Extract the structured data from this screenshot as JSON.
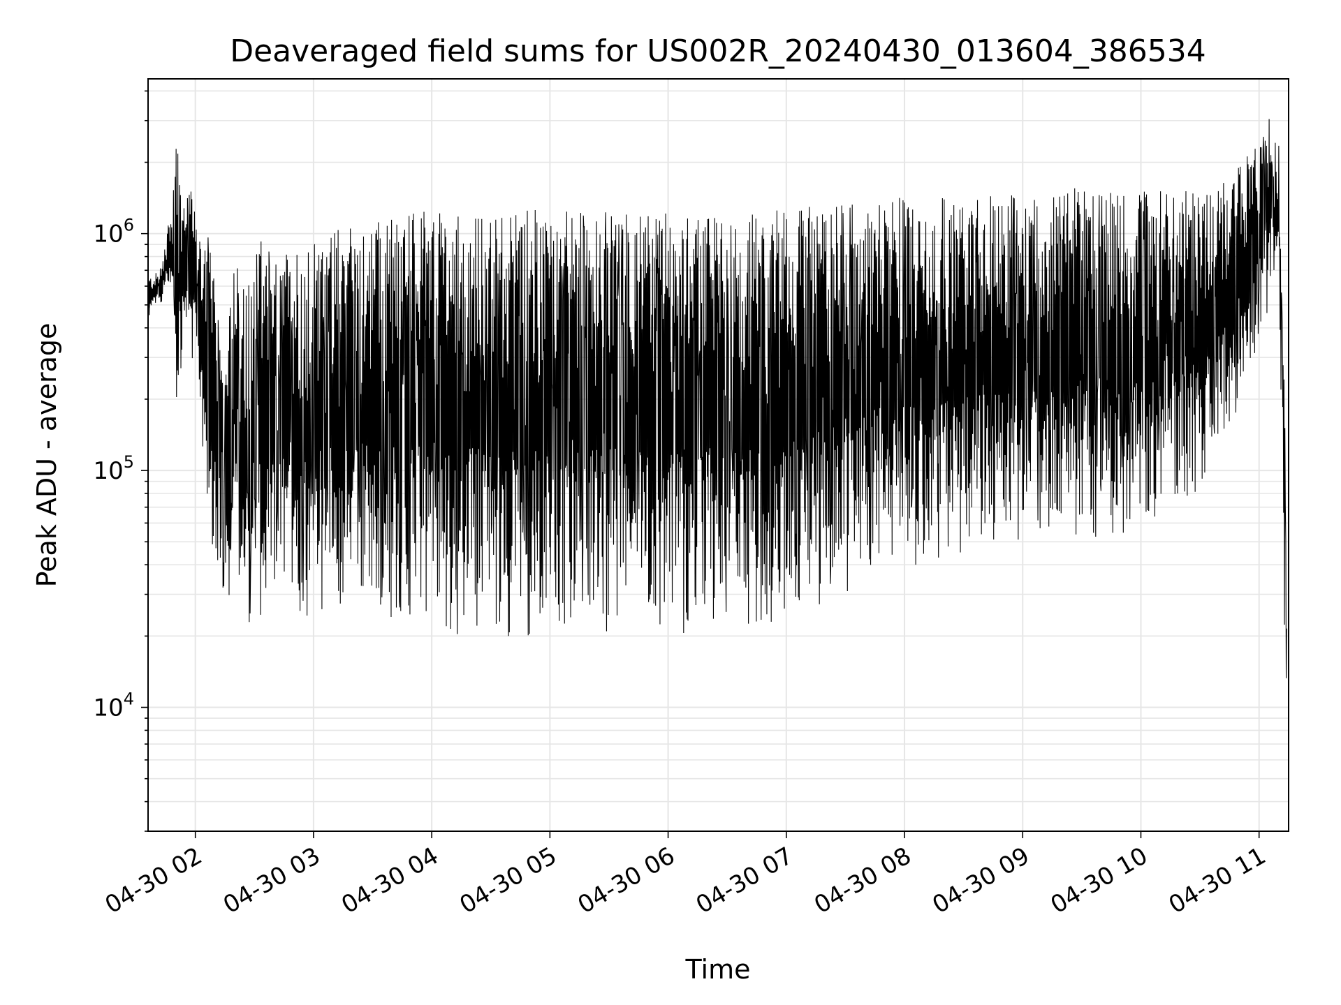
{
  "chart_data": {
    "type": "line",
    "title": "Deaveraged field sums for US002R_20240430_013604_386534",
    "xlabel": "Time",
    "ylabel": "Peak ADU - average",
    "yscale": "log",
    "ylim": [
      3000,
      4500000
    ],
    "xlim": [
      "2024-04-30 01:36",
      "2024-04-30 11:15"
    ],
    "grid": true,
    "line_color": "#000000",
    "x_tick_values": [
      "2024-04-30 02:00",
      "2024-04-30 03:00",
      "2024-04-30 04:00",
      "2024-04-30 05:00",
      "2024-04-30 06:00",
      "2024-04-30 07:00",
      "2024-04-30 08:00",
      "2024-04-30 09:00",
      "2024-04-30 10:00",
      "2024-04-30 11:00"
    ],
    "x_tick_labels": [
      "04-30 02",
      "04-30 03",
      "04-30 04",
      "04-30 05",
      "04-30 06",
      "04-30 07",
      "04-30 08",
      "04-30 09",
      "04-30 10",
      "04-30 11"
    ],
    "y_ticks": [
      {
        "value": 10000,
        "base": "10",
        "exp": "4"
      },
      {
        "value": 100000,
        "base": "10",
        "exp": "5"
      },
      {
        "value": 1000000,
        "base": "10",
        "exp": "6"
      }
    ],
    "series": [
      {
        "x": [
          "2024-04-30 01:36",
          "2024-04-30 01:42",
          "2024-04-30 01:48",
          "2024-04-30 01:51",
          "2024-04-30 01:54",
          "2024-04-30 01:57",
          "2024-04-30 02:00",
          "2024-04-30 02:03",
          "2024-04-30 02:06",
          "2024-04-30 02:09",
          "2024-04-30 02:12",
          "2024-04-30 02:15",
          "2024-04-30 02:20",
          "2024-04-30 02:25",
          "2024-04-30 02:30",
          "2024-04-30 02:40",
          "2024-04-30 02:50",
          "2024-04-30 03:00",
          "2024-04-30 03:15",
          "2024-04-30 03:30",
          "2024-04-30 03:45",
          "2024-04-30 04:00",
          "2024-04-30 04:15",
          "2024-04-30 04:30",
          "2024-04-30 04:45",
          "2024-04-30 05:00",
          "2024-04-30 05:15",
          "2024-04-30 05:30",
          "2024-04-30 05:45",
          "2024-04-30 06:00",
          "2024-04-30 06:15",
          "2024-04-30 06:30",
          "2024-04-30 06:45",
          "2024-04-30 07:00",
          "2024-04-30 07:15",
          "2024-04-30 07:30",
          "2024-04-30 07:45",
          "2024-04-30 08:00",
          "2024-04-30 08:15",
          "2024-04-30 08:30",
          "2024-04-30 08:45",
          "2024-04-30 09:00",
          "2024-04-30 09:15",
          "2024-04-30 09:30",
          "2024-04-30 09:45",
          "2024-04-30 10:00",
          "2024-04-30 10:15",
          "2024-04-30 10:30",
          "2024-04-30 10:45",
          "2024-04-30 11:00",
          "2024-04-30 11:05",
          "2024-04-30 11:10",
          "2024-04-30 11:12",
          "2024-04-30 11:14"
        ],
        "y_high": [
          650000,
          700000,
          1300000,
          3000000,
          1500000,
          1700000,
          1200000,
          900000,
          1050000,
          700000,
          400000,
          280000,
          850000,
          600000,
          1000000,
          800000,
          900000,
          1000000,
          1100000,
          1150000,
          1200000,
          1250000,
          1200000,
          1200000,
          1300000,
          1250000,
          1250000,
          1300000,
          1200000,
          1250000,
          1200000,
          1200000,
          1250000,
          1300000,
          1300000,
          1350000,
          1400000,
          1500000,
          1450000,
          1350000,
          1450000,
          1500000,
          1450000,
          1600000,
          1500000,
          1500000,
          1550000,
          1500000,
          1700000,
          2500000,
          3300000,
          2400000,
          1000000,
          40000
        ],
        "y_low": [
          420000,
          500000,
          600000,
          110000,
          350000,
          300000,
          250000,
          130000,
          60000,
          40000,
          30000,
          25000,
          22000,
          22000,
          22000,
          22000,
          24000,
          23000,
          24000,
          24000,
          22000,
          21000,
          20000,
          19000,
          18000,
          19000,
          20000,
          20000,
          19000,
          19000,
          18000,
          20000,
          21000,
          22000,
          26000,
          30000,
          34000,
          38000,
          42000,
          45000,
          48000,
          48000,
          50000,
          52000,
          52000,
          55000,
          58000,
          80000,
          150000,
          300000,
          500000,
          700000,
          60000,
          5000
        ]
      }
    ]
  }
}
